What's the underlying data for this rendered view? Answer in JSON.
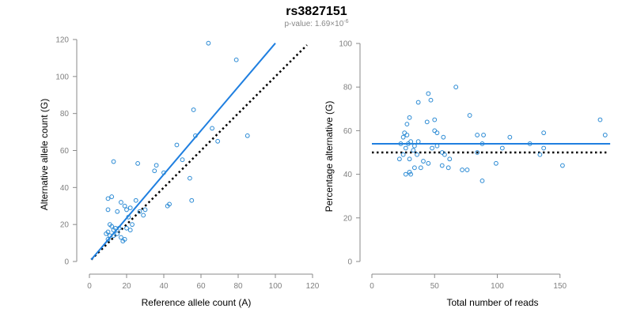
{
  "title": "rs3827151",
  "subtitle": {
    "prefix": "p-value: 1.69×10",
    "exponent": "-6"
  },
  "colors": {
    "points": "#2a8ad4",
    "fit_line": "#1f7fe0",
    "expected_line": "#000000",
    "axis": "#8a8a8a"
  },
  "chart_data": [
    {
      "type": "scatter",
      "xlabel": "Reference allele count (A)",
      "ylabel": "Alternative allele count (G)",
      "xlim": [
        0,
        120
      ],
      "ylim": [
        0,
        120
      ],
      "xticks": [
        0,
        20,
        40,
        60,
        80,
        100,
        120
      ],
      "yticks": [
        0,
        20,
        40,
        60,
        80,
        100,
        120
      ],
      "grid": false,
      "points": [
        {
          "x": 64,
          "y": 118
        },
        {
          "x": 79,
          "y": 109
        },
        {
          "x": 56,
          "y": 82
        },
        {
          "x": 66,
          "y": 72
        },
        {
          "x": 57,
          "y": 68
        },
        {
          "x": 69,
          "y": 65
        },
        {
          "x": 85,
          "y": 68
        },
        {
          "x": 47,
          "y": 63
        },
        {
          "x": 13,
          "y": 54
        },
        {
          "x": 26,
          "y": 53
        },
        {
          "x": 36,
          "y": 52
        },
        {
          "x": 35,
          "y": 49
        },
        {
          "x": 40,
          "y": 48
        },
        {
          "x": 50,
          "y": 55
        },
        {
          "x": 54,
          "y": 45
        },
        {
          "x": 55,
          "y": 33
        },
        {
          "x": 43,
          "y": 31
        },
        {
          "x": 42,
          "y": 30
        },
        {
          "x": 10,
          "y": 34
        },
        {
          "x": 12,
          "y": 35
        },
        {
          "x": 17,
          "y": 32
        },
        {
          "x": 22,
          "y": 29
        },
        {
          "x": 19,
          "y": 30
        },
        {
          "x": 20,
          "y": 28
        },
        {
          "x": 10,
          "y": 28
        },
        {
          "x": 25,
          "y": 33
        },
        {
          "x": 27,
          "y": 27
        },
        {
          "x": 29,
          "y": 25
        },
        {
          "x": 30,
          "y": 28
        },
        {
          "x": 15,
          "y": 27
        },
        {
          "x": 21,
          "y": 24
        },
        {
          "x": 11,
          "y": 20
        },
        {
          "x": 12,
          "y": 19
        },
        {
          "x": 14,
          "y": 18
        },
        {
          "x": 16,
          "y": 18
        },
        {
          "x": 13,
          "y": 17
        },
        {
          "x": 10,
          "y": 16
        },
        {
          "x": 11,
          "y": 14
        },
        {
          "x": 13,
          "y": 14
        },
        {
          "x": 15,
          "y": 15
        },
        {
          "x": 17,
          "y": 13
        },
        {
          "x": 19,
          "y": 12
        },
        {
          "x": 18,
          "y": 11
        },
        {
          "x": 20,
          "y": 18
        },
        {
          "x": 22,
          "y": 17
        },
        {
          "x": 23,
          "y": 20
        },
        {
          "x": 9,
          "y": 15
        },
        {
          "x": 10,
          "y": 12
        }
      ],
      "fit_line": {
        "x": [
          1,
          100
        ],
        "y": [
          1,
          118
        ]
      },
      "expected_line": {
        "x": [
          1,
          117
        ],
        "y": [
          1,
          117
        ]
      }
    },
    {
      "type": "scatter",
      "xlabel": "Total number of reads",
      "ylabel": "Percentage alternative (G)",
      "xlim": [
        0,
        200
      ],
      "ylim": [
        0,
        100
      ],
      "xticks": [
        0,
        50,
        100,
        150
      ],
      "yticks": [
        0,
        20,
        40,
        60,
        80,
        100
      ],
      "grid": false,
      "points": [
        {
          "x": 67,
          "y": 80
        },
        {
          "x": 45,
          "y": 77
        },
        {
          "x": 47,
          "y": 74
        },
        {
          "x": 37,
          "y": 73
        },
        {
          "x": 78,
          "y": 67
        },
        {
          "x": 30,
          "y": 66
        },
        {
          "x": 182,
          "y": 65
        },
        {
          "x": 50,
          "y": 65
        },
        {
          "x": 44,
          "y": 64
        },
        {
          "x": 28,
          "y": 63
        },
        {
          "x": 50,
          "y": 60
        },
        {
          "x": 26,
          "y": 59
        },
        {
          "x": 137,
          "y": 59
        },
        {
          "x": 52,
          "y": 59
        },
        {
          "x": 28,
          "y": 58
        },
        {
          "x": 84,
          "y": 58
        },
        {
          "x": 89,
          "y": 58
        },
        {
          "x": 186,
          "y": 58
        },
        {
          "x": 25,
          "y": 57
        },
        {
          "x": 57,
          "y": 57
        },
        {
          "x": 110,
          "y": 57
        },
        {
          "x": 31,
          "y": 55
        },
        {
          "x": 37,
          "y": 55
        },
        {
          "x": 23,
          "y": 54
        },
        {
          "x": 29,
          "y": 54
        },
        {
          "x": 88,
          "y": 54
        },
        {
          "x": 126,
          "y": 54
        },
        {
          "x": 34,
          "y": 53
        },
        {
          "x": 52,
          "y": 53
        },
        {
          "x": 27,
          "y": 52
        },
        {
          "x": 48,
          "y": 52
        },
        {
          "x": 104,
          "y": 52
        },
        {
          "x": 137,
          "y": 52
        },
        {
          "x": 33,
          "y": 51
        },
        {
          "x": 56,
          "y": 50
        },
        {
          "x": 84,
          "y": 50
        },
        {
          "x": 25,
          "y": 49
        },
        {
          "x": 36,
          "y": 49
        },
        {
          "x": 58,
          "y": 49
        },
        {
          "x": 134,
          "y": 49
        },
        {
          "x": 22,
          "y": 47
        },
        {
          "x": 30,
          "y": 47
        },
        {
          "x": 62,
          "y": 47
        },
        {
          "x": 41,
          "y": 46
        },
        {
          "x": 45,
          "y": 45
        },
        {
          "x": 99,
          "y": 45
        },
        {
          "x": 56,
          "y": 44
        },
        {
          "x": 152,
          "y": 44
        },
        {
          "x": 34,
          "y": 43
        },
        {
          "x": 39,
          "y": 43
        },
        {
          "x": 61,
          "y": 43
        },
        {
          "x": 72,
          "y": 42
        },
        {
          "x": 76,
          "y": 42
        },
        {
          "x": 30,
          "y": 41
        },
        {
          "x": 27,
          "y": 40
        },
        {
          "x": 31,
          "y": 40
        },
        {
          "x": 88,
          "y": 37
        }
      ],
      "fit_line": {
        "x": [
          0,
          190
        ],
        "y": [
          54,
          54
        ]
      },
      "expected_line": {
        "x": [
          0,
          187
        ],
        "y": [
          50,
          50
        ]
      }
    }
  ]
}
